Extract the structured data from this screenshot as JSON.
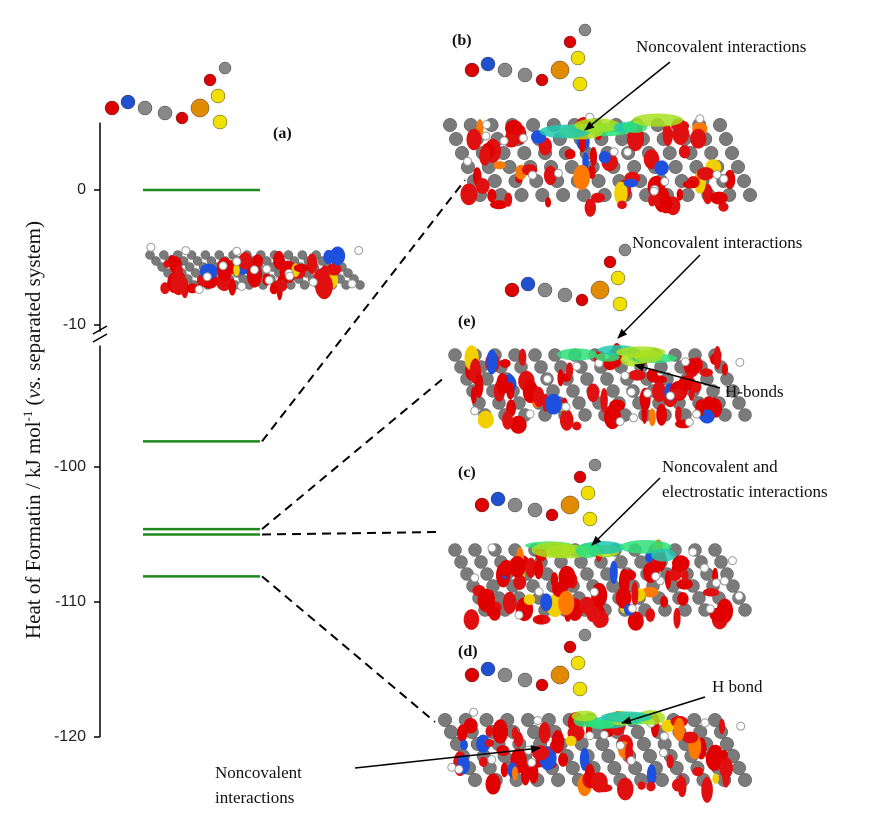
{
  "chart_data": {
    "type": "energy-levels",
    "ylabel_parts": [
      "Heat of Formatin / kJ mol",
      "-1",
      "(",
      "vs.",
      "separated system)"
    ],
    "y_segments": [
      {
        "ylim": [
          -10.5,
          5
        ],
        "yticks": [
          0,
          -10
        ]
      },
      {
        "ylim": [
          -120,
          -91
        ],
        "yticks": [
          -100,
          -110,
          -120
        ]
      }
    ],
    "color": "#1e8a1e",
    "levels": [
      {
        "label": "(a)",
        "value": 0
      },
      {
        "label": "(b)",
        "value": -98.1
      },
      {
        "label": "(e)",
        "value": -104.6
      },
      {
        "label": "(c)",
        "value": -105
      },
      {
        "label": "(d)",
        "value": -108.1
      }
    ],
    "annotations": [
      [
        "Noncovalent interactions"
      ],
      [
        "Noncovalent interactions"
      ],
      [
        "H-bonds"
      ],
      [
        "Noncovalent and",
        "electrostatic interactions"
      ],
      [
        "H bond"
      ],
      [
        "Noncovalent",
        "interactions"
      ]
    ]
  }
}
